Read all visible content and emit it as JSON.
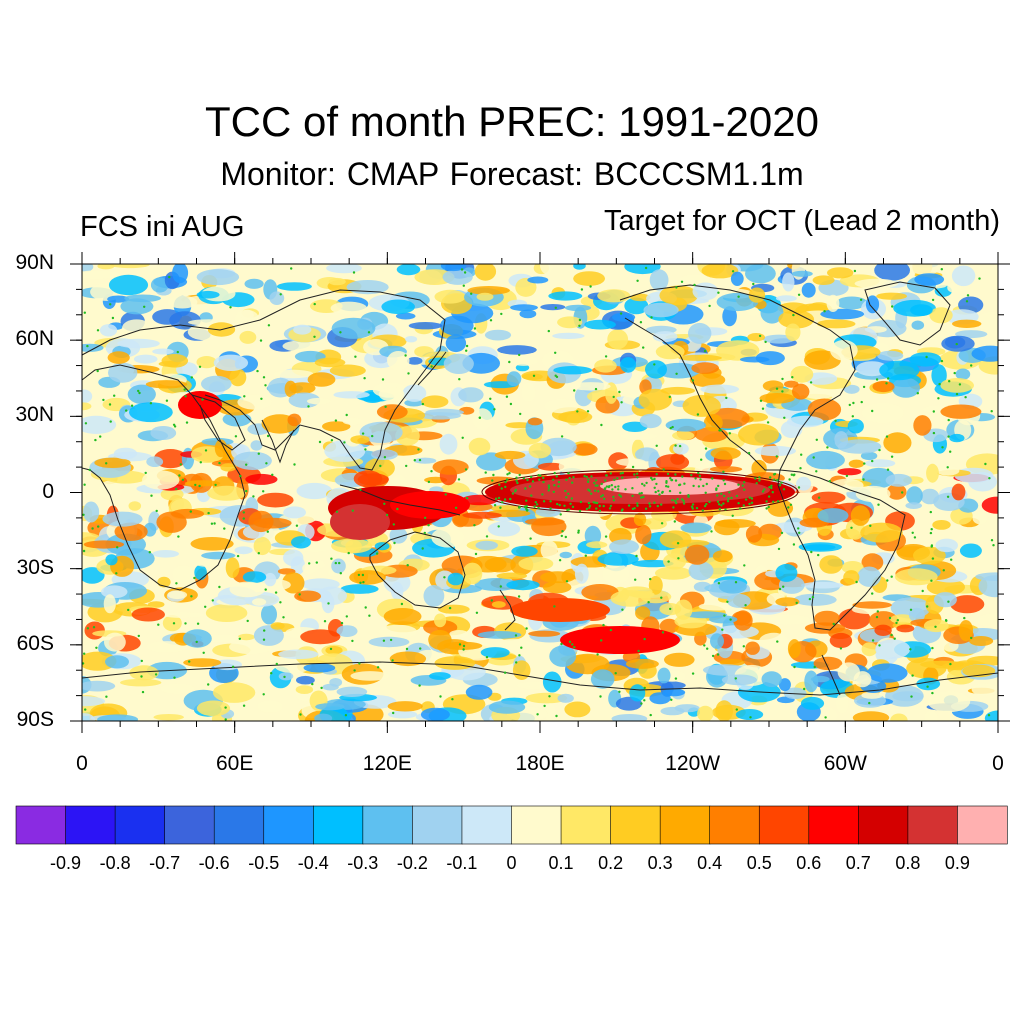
{
  "header": {
    "title": "TCC of month PREC: 1991-2020",
    "subtitle": "Monitor: CMAP   Forecast: BCCCSM1.1m",
    "left_label": "FCS ini AUG",
    "right_label": "Target for OCT (Lead 2 month)"
  },
  "map": {
    "lat_ticks": [
      "90N",
      "60N",
      "30N",
      "0",
      "30S",
      "60S",
      "90S"
    ],
    "lon_ticks": [
      "0",
      "60E",
      "120E",
      "180E",
      "120W",
      "60W",
      "0"
    ],
    "lat_range": [
      -90,
      90
    ],
    "lon_range_east": [
      0,
      360
    ],
    "significance_marker_color": "#22bb22",
    "coastline_color": "#222222"
  },
  "colorbar": {
    "levels": [
      "-0.9",
      "-0.8",
      "-0.7",
      "-0.6",
      "-0.5",
      "-0.4",
      "-0.3",
      "-0.2",
      "-0.1",
      "0",
      "0.1",
      "0.2",
      "0.3",
      "0.4",
      "0.5",
      "0.6",
      "0.7",
      "0.8",
      "0.9"
    ],
    "colors": [
      "#8a2be2",
      "#2c14f5",
      "#1a30f0",
      "#3c64dc",
      "#2a78e8",
      "#1e96ff",
      "#00bfff",
      "#5ec0f0",
      "#a0d2f0",
      "#cde8f8",
      "#fffacd",
      "#ffe866",
      "#ffcc22",
      "#ffaa00",
      "#ff7f00",
      "#ff4500",
      "#ff0000",
      "#d40000",
      "#d43232",
      "#ffb0b0"
    ]
  }
}
